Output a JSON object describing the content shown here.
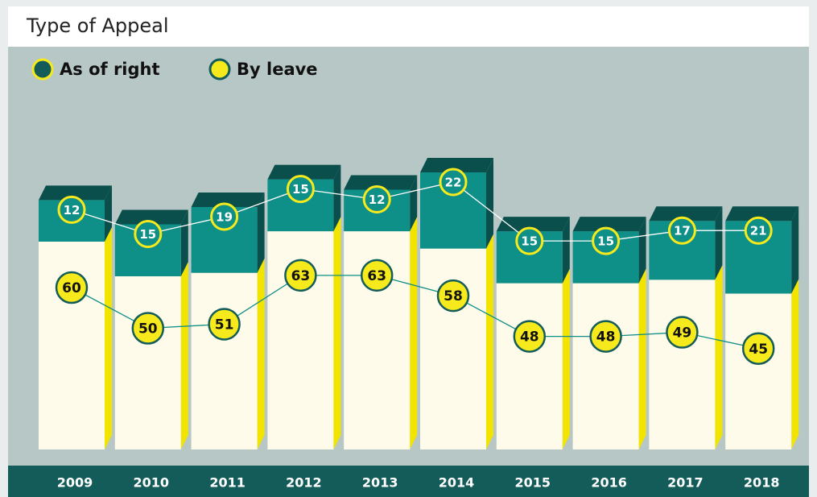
{
  "chart_data": {
    "type": "bar",
    "stacked": true,
    "title": "Type of Appeal",
    "categories": [
      "2009",
      "2010",
      "2011",
      "2012",
      "2013",
      "2014",
      "2015",
      "2016",
      "2017",
      "2018"
    ],
    "series": [
      {
        "name": "By leave",
        "color": "#fffbea",
        "values": [
          60,
          50,
          51,
          63,
          63,
          58,
          48,
          48,
          49,
          45
        ]
      },
      {
        "name": "As of right",
        "color": "#0e8f87",
        "values": [
          12,
          15,
          19,
          15,
          12,
          22,
          15,
          15,
          17,
          21
        ]
      }
    ]
  }
}
